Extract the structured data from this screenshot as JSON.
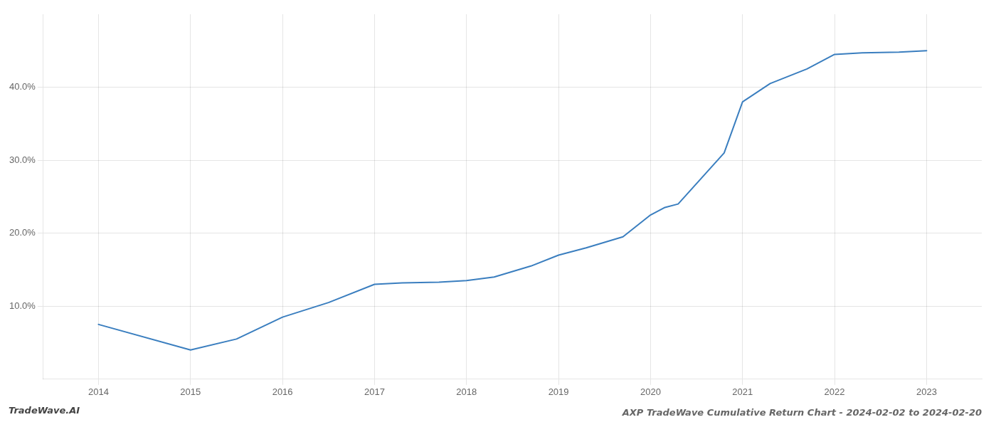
{
  "chart_data": {
    "type": "line",
    "title": "AXP TradeWave Cumulative Return Chart - 2024-02-02 to 2024-02-20",
    "annotations": [
      "TradeWave.AI"
    ],
    "x": [
      2014,
      2015,
      2015.5,
      2016,
      2016.5,
      2017,
      2017.3,
      2017.7,
      2018,
      2018.3,
      2018.7,
      2019,
      2019.3,
      2019.7,
      2020,
      2020.15,
      2020.3,
      2020.8,
      2021,
      2021.3,
      2021.7,
      2022,
      2022.3,
      2022.7,
      2023
    ],
    "values": [
      7.5,
      4.0,
      5.5,
      8.5,
      10.5,
      13.0,
      13.2,
      13.3,
      13.5,
      14.0,
      15.5,
      17.0,
      18.0,
      19.5,
      22.5,
      23.5,
      24.0,
      31.0,
      38.0,
      40.5,
      42.5,
      44.5,
      44.7,
      44.8,
      45.0
    ],
    "color": "#3a7ebf",
    "xlim": [
      2013.4,
      2023.6
    ],
    "xticks": [
      2014,
      2015,
      2016,
      2017,
      2018,
      2019,
      2020,
      2021,
      2022,
      2023
    ],
    "ylim": [
      0.0,
      50.0
    ],
    "yticks": [
      {
        "value": 10.0,
        "label": "10.0%"
      },
      {
        "value": 20.0,
        "label": "20.0%"
      },
      {
        "value": 30.0,
        "label": "30.0%"
      },
      {
        "value": 40.0,
        "label": "40.0%"
      }
    ],
    "grid": true
  }
}
